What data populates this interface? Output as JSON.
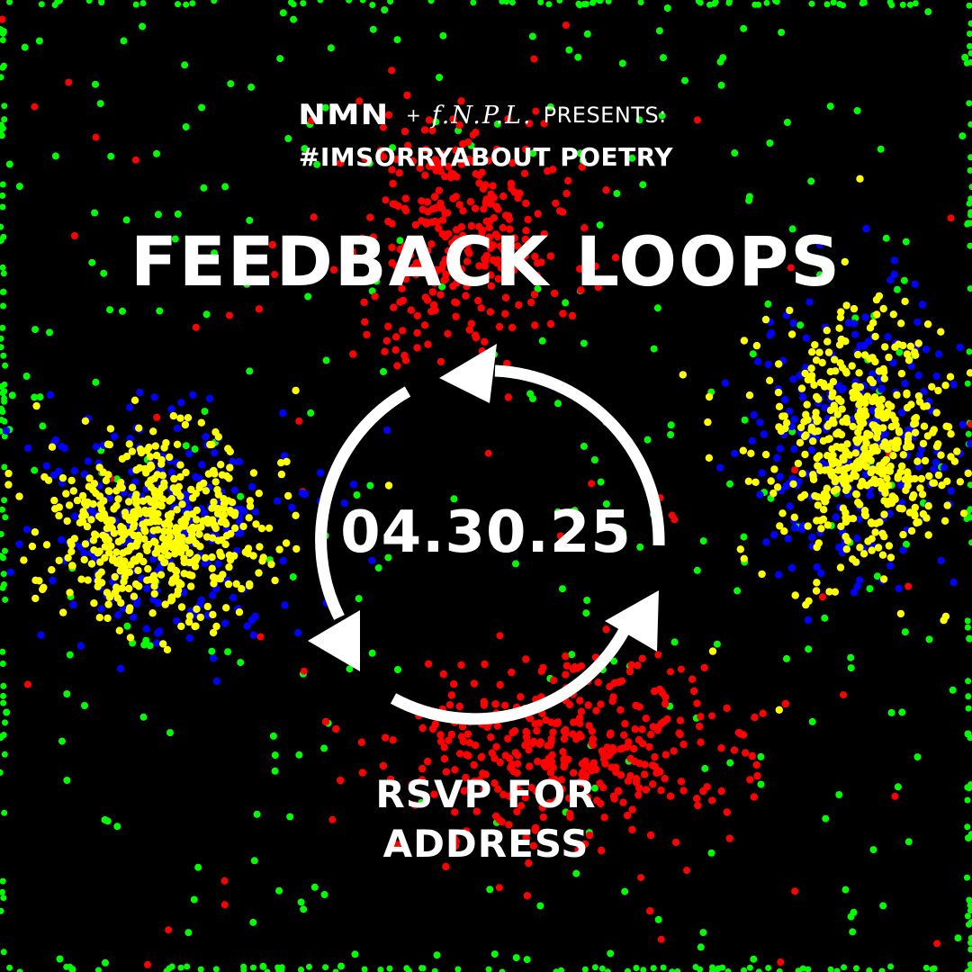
{
  "header": {
    "nmn_logo": "NMN",
    "plus": "+",
    "fnpl_logo": "f.N.P.L.",
    "presents": "PRESENTS:"
  },
  "subtitle": "#IMSORRYABOUT POETRY",
  "title": "FEEDBACK LOOPS",
  "date": "04.30.25",
  "rsvp": {
    "line1": "RSVP FOR",
    "line2": "ADDRESS"
  },
  "colors": {
    "background": "#000000",
    "text": "#ffffff",
    "dot_green": "#00ff00",
    "dot_red": "#ff0000",
    "dot_yellow": "#ffff00",
    "dot_blue": "#0000ff"
  },
  "icons": {
    "cycle": "circular-arrows-icon"
  }
}
